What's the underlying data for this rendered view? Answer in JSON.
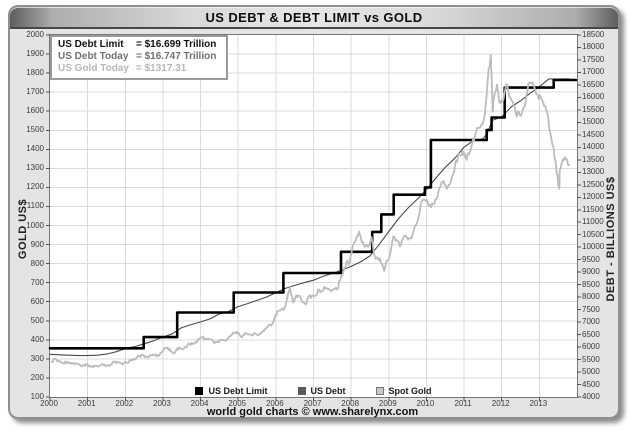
{
  "caption": "world gold charts © www.sharelynx.com",
  "info_box": {
    "items": [
      {
        "label": "US Debt Limit",
        "value": "= $16.699 Trillion",
        "color": "#101010"
      },
      {
        "label": "US Debt Today",
        "value": "= $16.747 Trillion",
        "color": "#6f6f6f"
      },
      {
        "label": "US Gold Today",
        "value": "= $1317.31",
        "color": "#b6b6b6"
      }
    ]
  },
  "legend": {
    "items": [
      {
        "label": "US Debt Limit",
        "swatch": "#000000",
        "swatch_border": "#000000"
      },
      {
        "label": "US Debt",
        "swatch": "#5a5a5a",
        "swatch_border": "#5a5a5a"
      },
      {
        "label": "Spot Gold",
        "swatch": "#c8c8c8",
        "swatch_border": "#777777"
      }
    ]
  },
  "chart_data": {
    "type": "line",
    "title": "US DEBT & DEBT LIMIT vs GOLD",
    "grid": true,
    "x_axis": {
      "range": [
        2000,
        2014.0
      ],
      "ticks": [
        2000,
        2001,
        2002,
        2003,
        2004,
        2005,
        2006,
        2007,
        2008,
        2009,
        2010,
        2011,
        2012,
        2013
      ]
    },
    "left_axis": {
      "label": "GOLD US$",
      "range": [
        100,
        2000
      ],
      "tick_step": 100
    },
    "right_axis": {
      "label": "DEBT - BILLIONS US$",
      "range": [
        4000,
        18500
      ],
      "tick_step": 500
    },
    "series": [
      {
        "name": "US Debt",
        "axis": "right",
        "draw": "line",
        "color": "#4a4a4a",
        "width": 1.1,
        "points": [
          [
            2000.0,
            5710
          ],
          [
            2000.25,
            5690
          ],
          [
            2000.5,
            5675
          ],
          [
            2000.75,
            5660
          ],
          [
            2001.0,
            5660
          ],
          [
            2001.25,
            5675
          ],
          [
            2001.5,
            5720
          ],
          [
            2001.75,
            5810
          ],
          [
            2002.0,
            5940
          ],
          [
            2002.25,
            6020
          ],
          [
            2002.5,
            6130
          ],
          [
            2002.75,
            6250
          ],
          [
            2003.0,
            6400
          ],
          [
            2003.25,
            6530
          ],
          [
            2003.5,
            6780
          ],
          [
            2003.75,
            6900
          ],
          [
            2004.0,
            7010
          ],
          [
            2004.25,
            7130
          ],
          [
            2004.5,
            7330
          ],
          [
            2004.75,
            7430
          ],
          [
            2005.0,
            7620
          ],
          [
            2005.25,
            7740
          ],
          [
            2005.5,
            7870
          ],
          [
            2005.75,
            8000
          ],
          [
            2006.0,
            8180
          ],
          [
            2006.25,
            8350
          ],
          [
            2006.5,
            8470
          ],
          [
            2006.75,
            8580
          ],
          [
            2007.0,
            8680
          ],
          [
            2007.25,
            8830
          ],
          [
            2007.5,
            8950
          ],
          [
            2007.75,
            9080
          ],
          [
            2008.0,
            9230
          ],
          [
            2008.25,
            9410
          ],
          [
            2008.5,
            9650
          ],
          [
            2008.75,
            10120
          ],
          [
            2009.0,
            10630
          ],
          [
            2009.25,
            11130
          ],
          [
            2009.5,
            11550
          ],
          [
            2009.75,
            11910
          ],
          [
            2010.0,
            12300
          ],
          [
            2010.25,
            12770
          ],
          [
            2010.5,
            13200
          ],
          [
            2010.75,
            13560
          ],
          [
            2011.0,
            14010
          ],
          [
            2011.25,
            14270
          ],
          [
            2011.5,
            14340
          ],
          [
            2011.62,
            14580
          ],
          [
            2011.75,
            15080
          ],
          [
            2012.0,
            15220
          ],
          [
            2012.25,
            15620
          ],
          [
            2012.5,
            15860
          ],
          [
            2012.75,
            16160
          ],
          [
            2013.0,
            16430
          ],
          [
            2013.25,
            16740
          ],
          [
            2013.5,
            16738
          ],
          [
            2013.79,
            16747
          ]
        ]
      },
      {
        "name": "US Debt Limit",
        "axis": "right",
        "draw": "step",
        "color": "#000000",
        "width": 2.6,
        "points": [
          [
            2000.0,
            5950
          ],
          [
            2002.49,
            6400
          ],
          [
            2003.38,
            7384
          ],
          [
            2004.88,
            8184
          ],
          [
            2006.2,
            8965
          ],
          [
            2007.73,
            9815
          ],
          [
            2008.56,
            10615
          ],
          [
            2008.8,
            11315
          ],
          [
            2009.13,
            12104
          ],
          [
            2009.96,
            12394
          ],
          [
            2010.12,
            14294
          ],
          [
            2011.6,
            14694
          ],
          [
            2011.73,
            15194
          ],
          [
            2012.08,
            16394
          ],
          [
            2013.38,
            16699
          ],
          [
            2013.97,
            16699
          ]
        ]
      },
      {
        "name": "Spot Gold",
        "axis": "left",
        "draw": "line",
        "color": "#bcbcbc",
        "width": 1.8,
        "jitter": true,
        "monthly": {
          "start_year": 2000,
          "values": [
            [
              284,
              300,
              286,
              280,
              275,
              286,
              281,
              274,
              274,
              270,
              266,
              272
            ],
            [
              266,
              262,
              263,
              260,
              272,
              270,
              268,
              272,
              284,
              283,
              276,
              276
            ],
            [
              281,
              295,
              294,
              302,
              314,
              321,
              313,
              310,
              319,
              317,
              319,
              333
            ],
            [
              357,
              359,
              340,
              328,
              355,
              356,
              351,
              360,
              379,
              379,
              389,
              407
            ],
            [
              414,
              405,
              407,
              403,
              383,
              392,
              398,
              400,
              405,
              420,
              439,
              442
            ],
            [
              424,
              423,
              434,
              429,
              422,
              431,
              424,
              437,
              456,
              470,
              476,
              510
            ],
            [
              550,
              555,
              557,
              611,
              675,
              596,
              634,
              632,
              599,
              586,
              627,
              630
            ],
            [
              631,
              665,
              655,
              679,
              667,
              655,
              665,
              665,
              713,
              755,
              806,
              803
            ],
            [
              890,
              922,
              968,
              910,
              889,
              889,
              940,
              839,
              829,
              807,
              761,
              816
            ],
            [
              858,
              943,
              924,
              890,
              928,
              946,
              934,
              949,
              997,
              1043,
              1127,
              1135
            ],
            [
              1118,
              1095,
              1113,
              1149,
              1205,
              1233,
              1193,
              1216,
              1271,
              1342,
              1370,
              1391
            ],
            [
              1356,
              1373,
              1424,
              1474,
              1512,
              1529,
              1573,
              1756,
              1895,
              1666,
              1739,
              1641
            ],
            [
              1656,
              1743,
              1674,
              1650,
              1586,
              1597,
              1594,
              1630,
              1745,
              1747,
              1721,
              1685
            ],
            [
              1671,
              1628,
              1593,
              1487,
              1414,
              1280,
              1286,
              1347,
              1348,
              1317
            ]
          ]
        },
        "extra_points": [
          [
            2011.76,
            1598
          ],
          [
            2013.53,
            1192
          ]
        ]
      }
    ]
  }
}
